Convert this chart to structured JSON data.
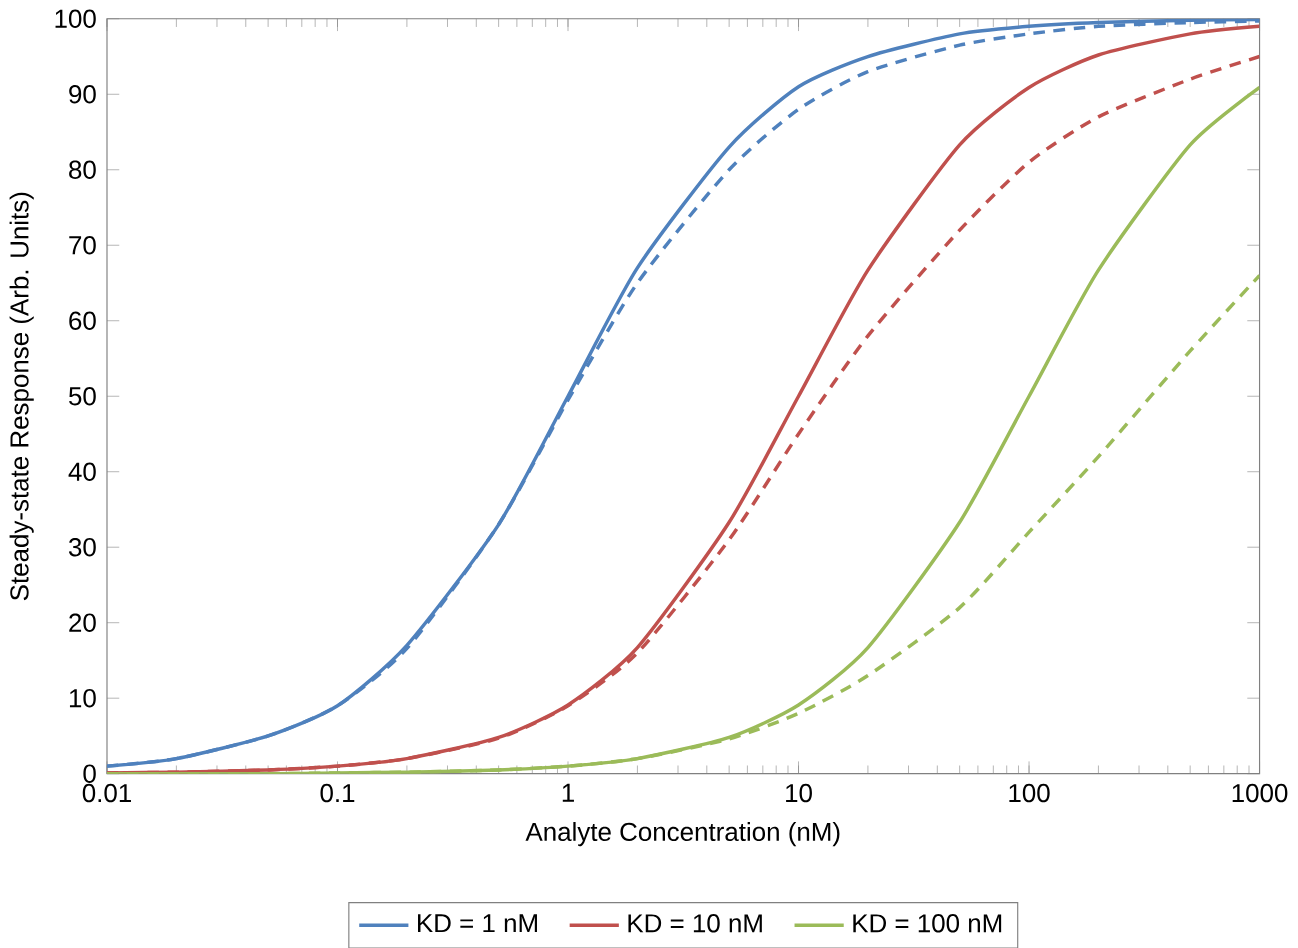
{
  "chart_data": {
    "type": "line",
    "xlabel": "Analyte Concentration (nM)",
    "ylabel": "Steady-state Response (Arb. Units)",
    "log": "x",
    "xlim": [
      0.01,
      1000
    ],
    "ylim": [
      0,
      100
    ],
    "xticks": [
      0.01,
      0.1,
      1,
      10,
      100,
      1000
    ],
    "yticks": [
      0,
      10,
      20,
      30,
      40,
      50,
      60,
      70,
      80,
      90,
      100
    ],
    "legend": "bottom",
    "grid": false,
    "marker": "none",
    "x": [
      0.01,
      0.02,
      0.05,
      0.1,
      0.2,
      0.5,
      1,
      2,
      5,
      10,
      20,
      50,
      100,
      200,
      500,
      1000
    ],
    "series": [
      {
        "name": "KD = 1 nM",
        "color": "#4f81bd",
        "line_style": "solid",
        "values": [
          1,
          2,
          5,
          9,
          17,
          33,
          50,
          67,
          83,
          91,
          95,
          98,
          99,
          99.5,
          99.8,
          99.9
        ]
      },
      {
        "color": "#4f81bd",
        "line_style": "dashed",
        "values": [
          1,
          2,
          5,
          9,
          16.6,
          33,
          49.5,
          65,
          80,
          88,
          93,
          96.5,
          98,
          99,
          99.5,
          99.7
        ]
      },
      {
        "name": "KD = 10 nM",
        "color": "#c0504d",
        "line_style": "solid",
        "values": [
          0.1,
          0.2,
          0.5,
          1,
          2,
          4.8,
          9.1,
          16.7,
          33.3,
          50,
          66.7,
          83.3,
          90.9,
          95.2,
          98,
          99
        ]
      },
      {
        "color": "#c0504d",
        "line_style": "dashed",
        "values": [
          0.1,
          0.2,
          0.5,
          1,
          2,
          4.7,
          9,
          16,
          31,
          45,
          58,
          72,
          81,
          87,
          92,
          95
        ]
      },
      {
        "name": "KD = 100 nM",
        "color": "#9bbb59",
        "line_style": "solid",
        "values": [
          0,
          0,
          0,
          0.1,
          0.2,
          0.5,
          1,
          2,
          4.8,
          9.1,
          16.7,
          33.3,
          50,
          66.7,
          83.3,
          90.9
        ]
      },
      {
        "color": "#9bbb59",
        "line_style": "dashed",
        "values": [
          0,
          0,
          0,
          0.1,
          0.2,
          0.5,
          1,
          2,
          4.6,
          8,
          13,
          22,
          32,
          42,
          56,
          66
        ]
      }
    ]
  }
}
